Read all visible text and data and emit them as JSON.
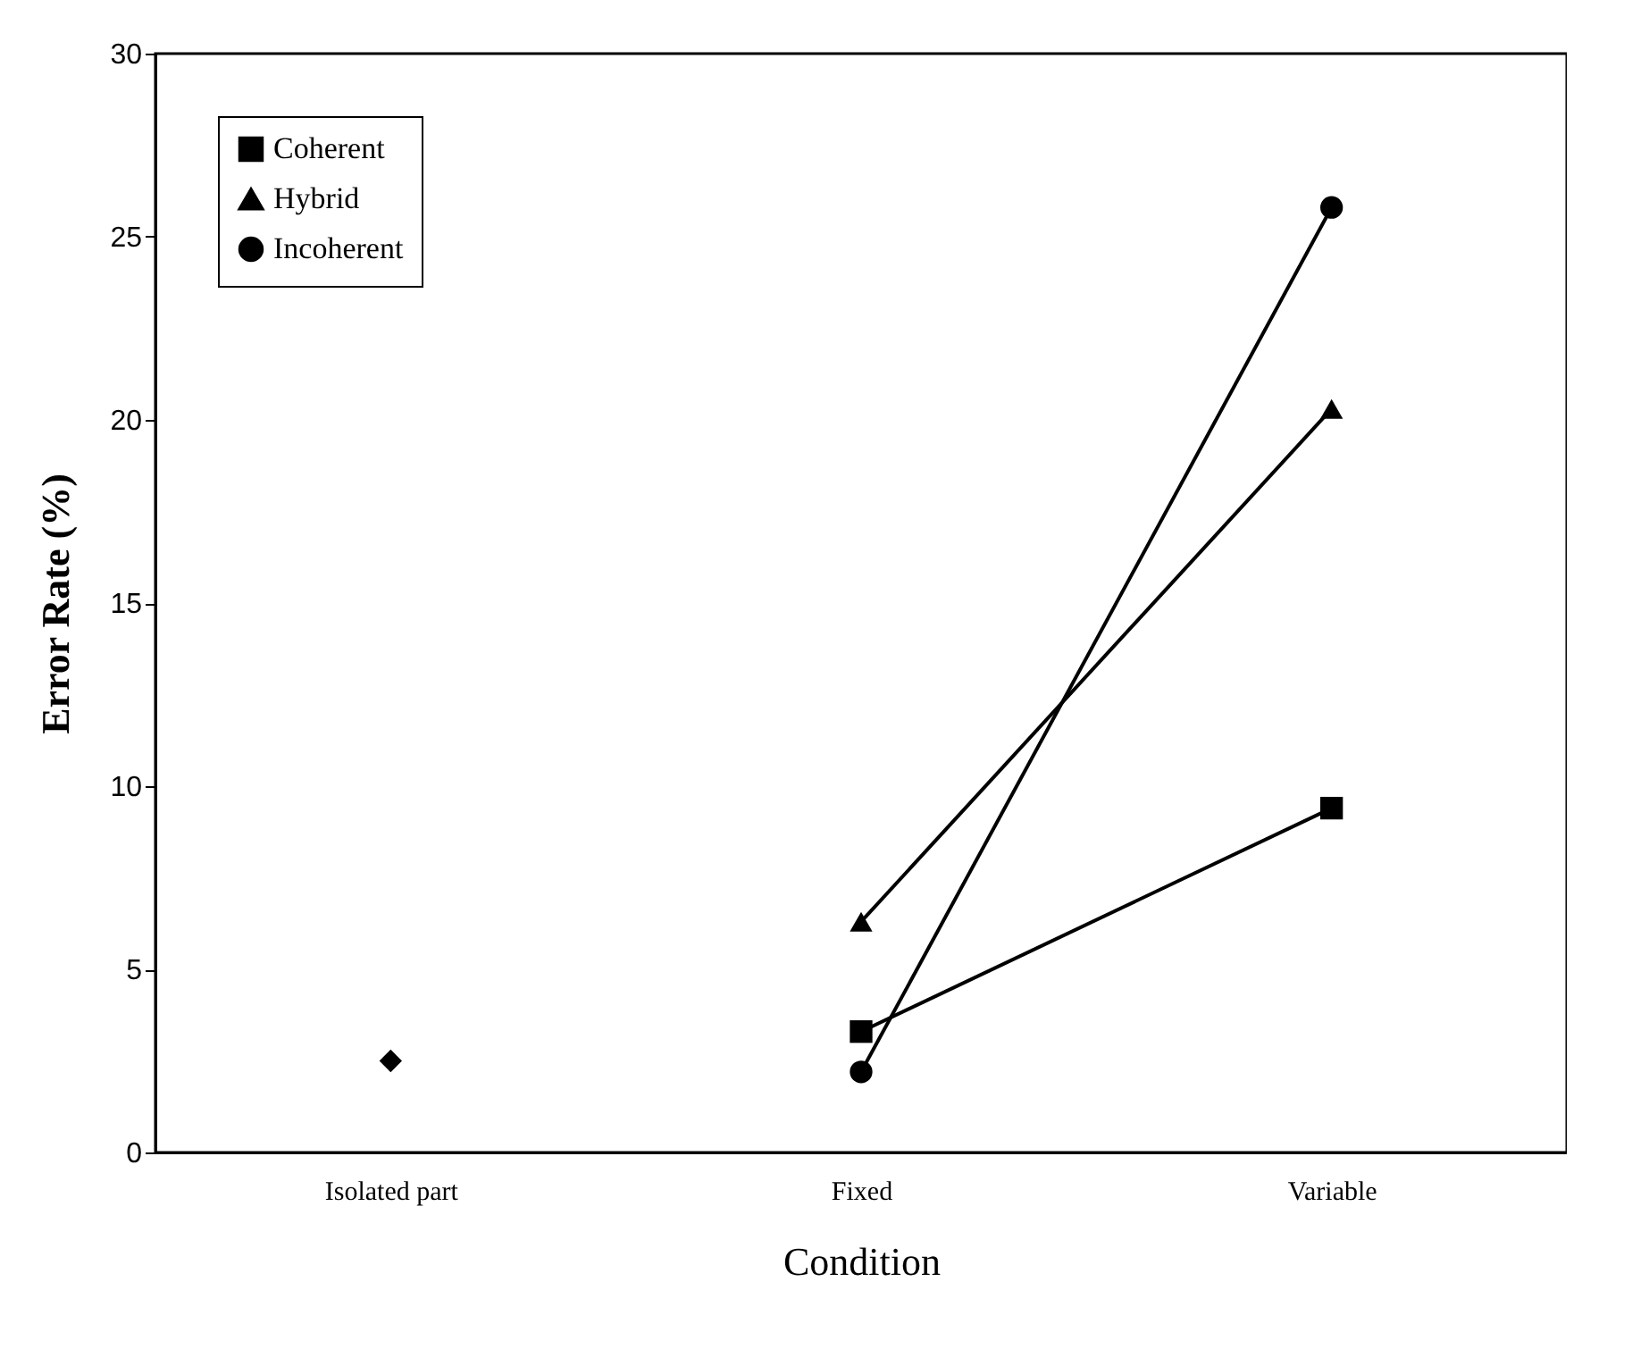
{
  "chart_data": {
    "type": "line",
    "xlabel": "Condition",
    "ylabel": "Error Rate (%)",
    "categories": [
      "Isolated part",
      "Fixed",
      "Variable"
    ],
    "series": [
      {
        "name": "Coherent",
        "color": "#000000",
        "marker": "square",
        "values": [
          null,
          3.3,
          9.4
        ]
      },
      {
        "name": "Hybrid",
        "color": "#000000",
        "marker": "triangle",
        "values": [
          null,
          6.3,
          20.3
        ]
      },
      {
        "name": "Incoherent",
        "color": "#000000",
        "marker": "circle",
        "values": [
          null,
          2.2,
          25.8
        ]
      },
      {
        "type": "scatter",
        "color": "#000000",
        "marker": "diamond",
        "values": [
          2.5,
          null,
          null
        ]
      }
    ],
    "ylim": [
      0,
      30
    ],
    "yticks": [
      0,
      5,
      10,
      15,
      20,
      25,
      30
    ],
    "grid": false,
    "legend": "top left",
    "line_style": "solid"
  }
}
